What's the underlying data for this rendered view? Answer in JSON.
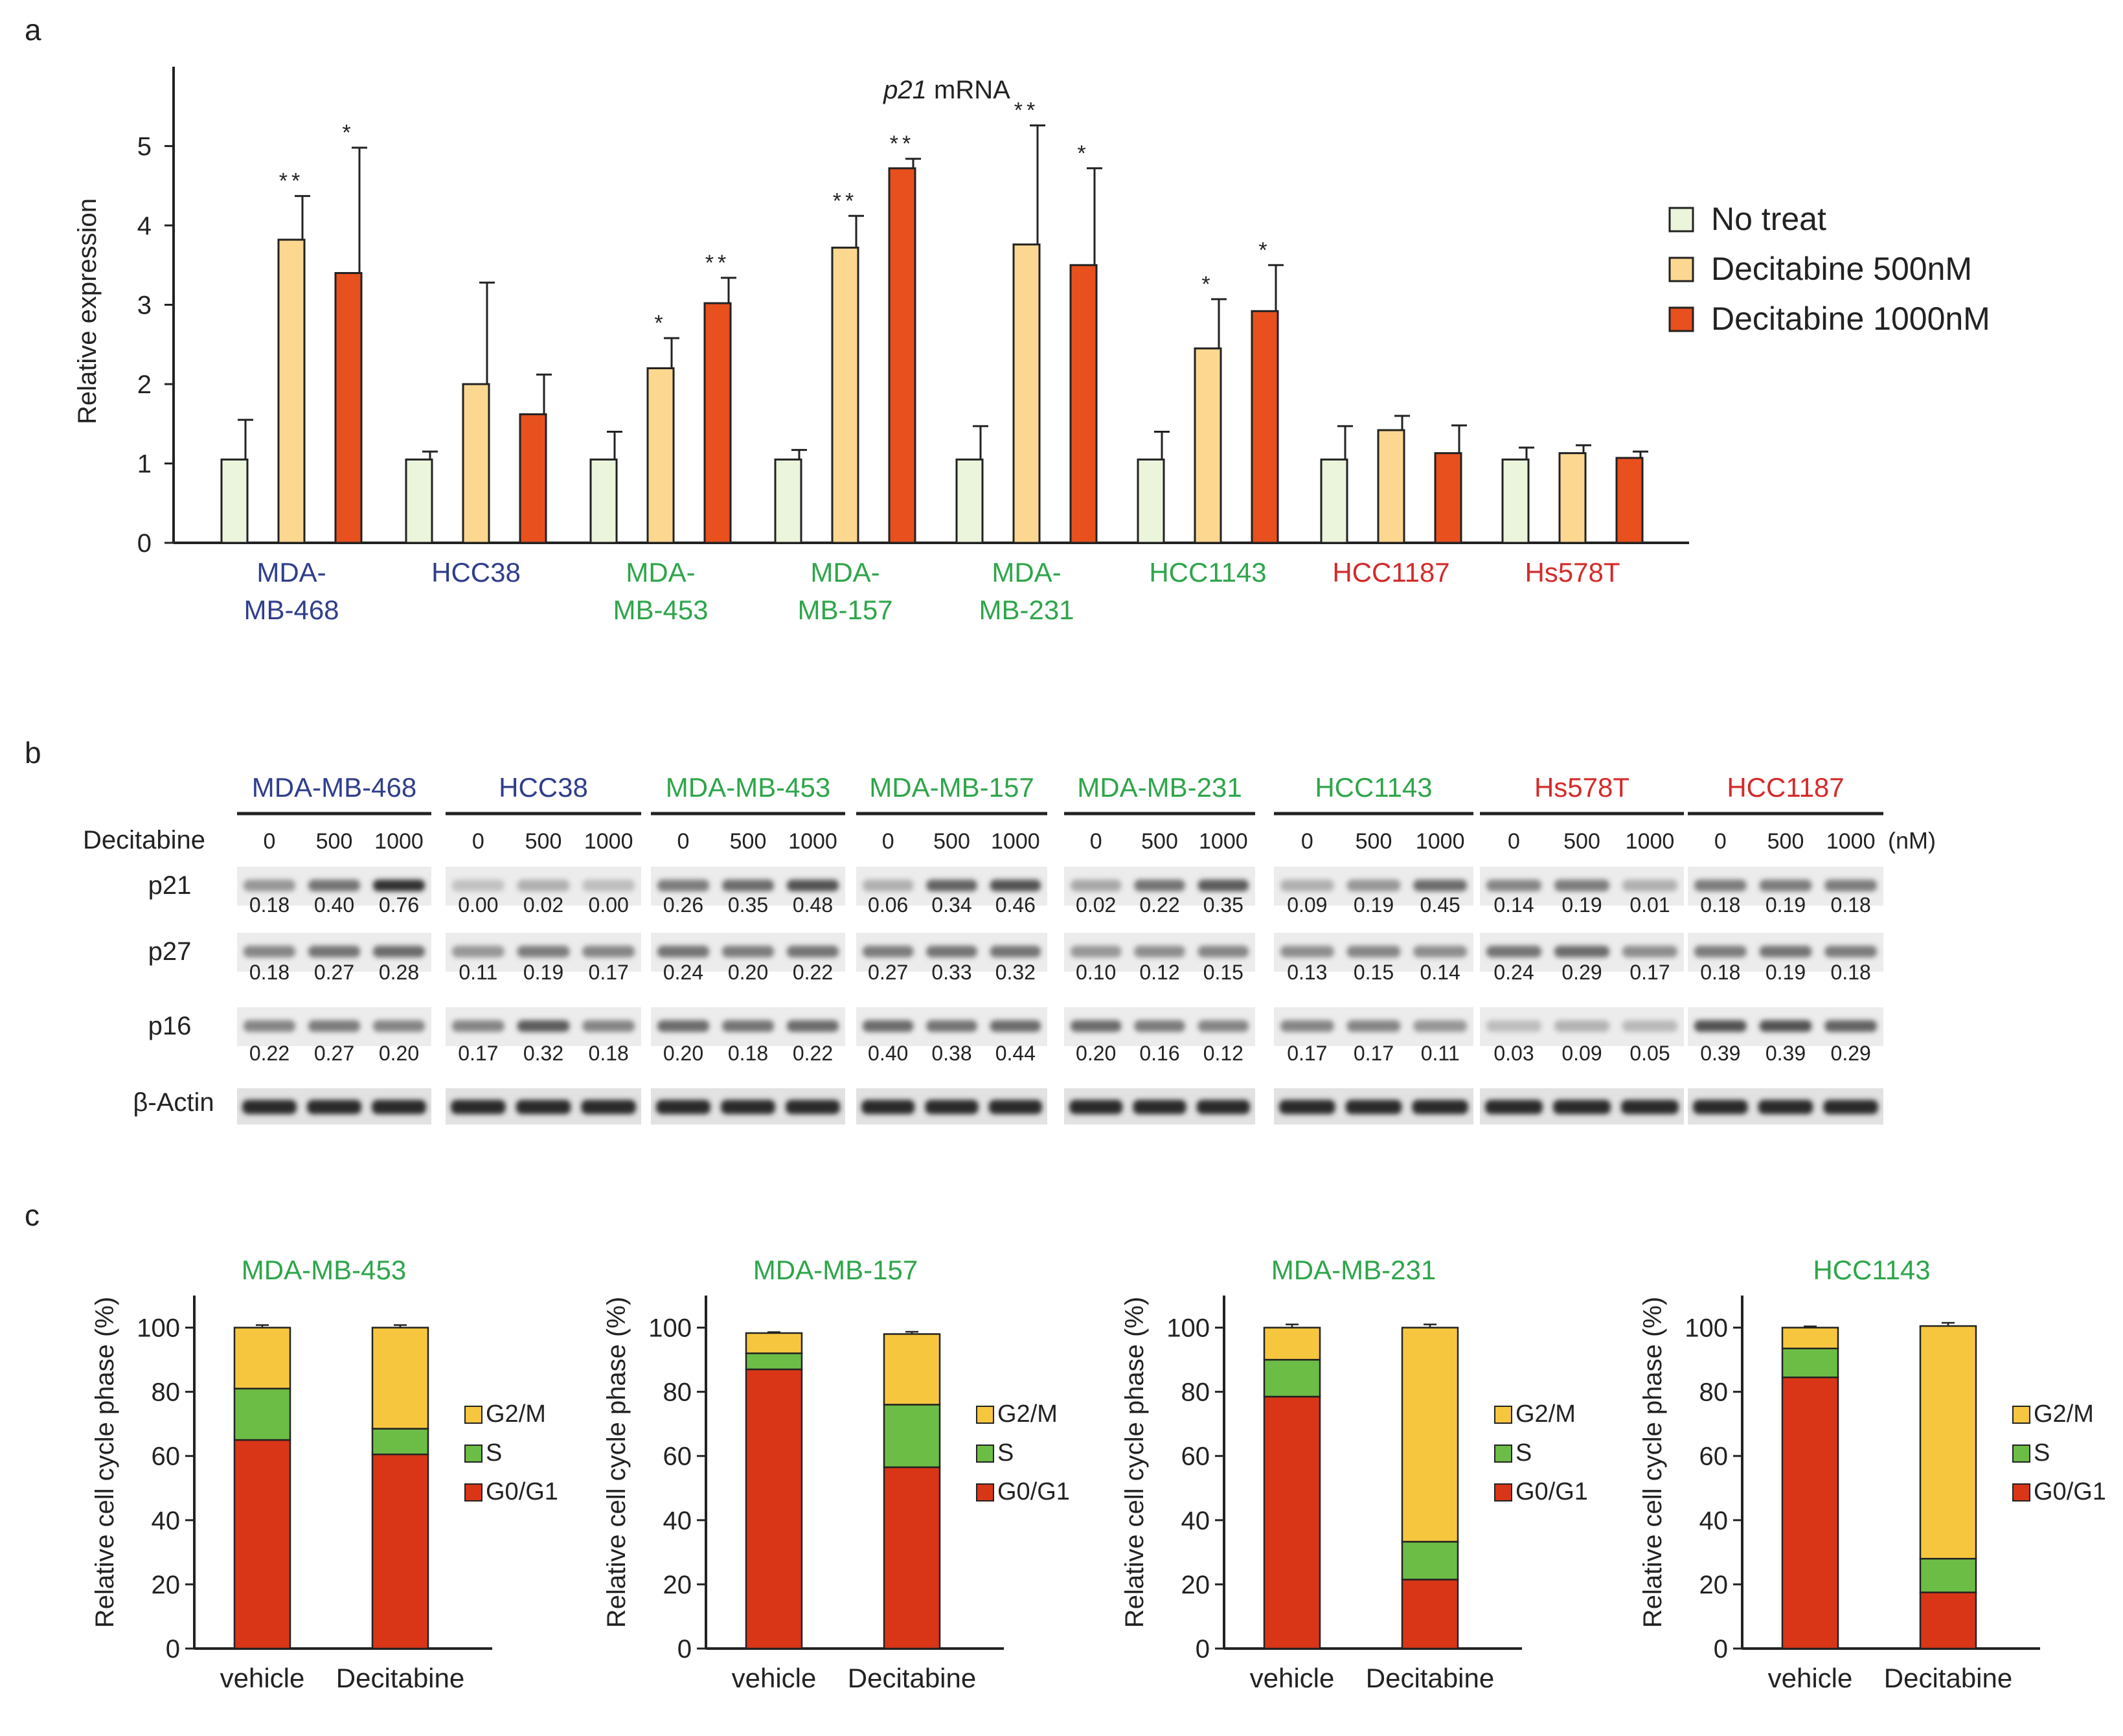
{
  "panel_labels": {
    "a": "a",
    "b": "b",
    "c": "c"
  },
  "colors": {
    "no_treat": "#eaf5dc",
    "dec500": "#fcd790",
    "dec1000": "#e8501e",
    "blue": "#2f3e8c",
    "green": "#2ea54a",
    "red": "#d42a2a",
    "G0G1": "#d93618",
    "S": "#6cbd45",
    "G2M": "#f6c73e"
  },
  "panel_b": {
    "cell_lines": [
      {
        "name": "MDA-MB-468",
        "color": "blue"
      },
      {
        "name": "HCC38",
        "color": "blue"
      },
      {
        "name": "MDA-MB-453",
        "color": "green"
      },
      {
        "name": "MDA-MB-157",
        "color": "green"
      },
      {
        "name": "MDA-MB-231",
        "color": "green"
      },
      {
        "name": "HCC1143",
        "color": "green"
      },
      {
        "name": "Hs578T",
        "color": "red"
      },
      {
        "name": "HCC1187",
        "color": "red"
      }
    ],
    "treatment_label": "Decitabine",
    "doses": [
      "0",
      "500",
      "1000"
    ],
    "unit": "(nM)",
    "rows": [
      {
        "label": "p21",
        "values": [
          [
            "0.18",
            "0.40",
            "0.76"
          ],
          [
            "0.00",
            "0.02",
            "0.00"
          ],
          [
            "0.26",
            "0.35",
            "0.48"
          ],
          [
            "0.06",
            "0.34",
            "0.46"
          ],
          [
            "0.02",
            "0.22",
            "0.35"
          ],
          [
            "0.09",
            "0.19",
            "0.45"
          ],
          [
            "0.14",
            "0.19",
            "0.01"
          ],
          [
            "0.18",
            "0.19",
            "0.18"
          ]
        ]
      },
      {
        "label": "p27",
        "values": [
          [
            "0.18",
            "0.27",
            "0.28"
          ],
          [
            "0.11",
            "0.19",
            "0.17"
          ],
          [
            "0.24",
            "0.20",
            "0.22"
          ],
          [
            "0.27",
            "0.33",
            "0.32"
          ],
          [
            "0.10",
            "0.12",
            "0.15"
          ],
          [
            "0.13",
            "0.15",
            "0.14"
          ],
          [
            "0.24",
            "0.29",
            "0.17"
          ],
          [
            "0.18",
            "0.19",
            "0.18"
          ]
        ]
      },
      {
        "label": "p16",
        "values": [
          [
            "0.22",
            "0.27",
            "0.20"
          ],
          [
            "0.17",
            "0.32",
            "0.18"
          ],
          [
            "0.20",
            "0.18",
            "0.22"
          ],
          [
            "0.40",
            "0.38",
            "0.44"
          ],
          [
            "0.20",
            "0.16",
            "0.12"
          ],
          [
            "0.17",
            "0.17",
            "0.11"
          ],
          [
            "0.03",
            "0.09",
            "0.05"
          ],
          [
            "0.39",
            "0.39",
            "0.29"
          ]
        ]
      }
    ],
    "actin_label": "β-Actin"
  },
  "chart_data": [
    {
      "type": "bar",
      "title_italic": "p21",
      "title_rest": " mRNA",
      "ylabel": "Relative expression",
      "ylim": [
        0,
        6
      ],
      "yticks": [
        0,
        1,
        2,
        3,
        4,
        5
      ],
      "categories": [
        {
          "lines": [
            "MDA-",
            "MB-468"
          ],
          "color": "blue"
        },
        {
          "lines": [
            "HCC38"
          ],
          "color": "blue"
        },
        {
          "lines": [
            "MDA-",
            "MB-453"
          ],
          "color": "green"
        },
        {
          "lines": [
            "MDA-",
            "MB-157"
          ],
          "color": "green"
        },
        {
          "lines": [
            "MDA-",
            "MB-231"
          ],
          "color": "green"
        },
        {
          "lines": [
            "HCC1143"
          ],
          "color": "green"
        },
        {
          "lines": [
            "HCC1187"
          ],
          "color": "red"
        },
        {
          "lines": [
            "Hs578T"
          ],
          "color": "red"
        }
      ],
      "series": [
        {
          "name": "No treat",
          "color": "no_treat",
          "values": [
            1.05,
            1.05,
            1.05,
            1.05,
            1.05,
            1.05,
            1.05,
            1.05
          ],
          "errors": [
            0.5,
            0.1,
            0.35,
            0.12,
            0.42,
            0.35,
            0.42,
            0.15
          ],
          "sig": [
            "",
            "",
            "",
            "",
            "",
            "",
            "",
            ""
          ]
        },
        {
          "name": "Decitabine 500nM",
          "color": "dec500",
          "values": [
            3.82,
            2.0,
            2.2,
            3.72,
            3.76,
            2.45,
            1.42,
            1.13
          ],
          "errors": [
            0.55,
            1.28,
            0.38,
            0.4,
            1.5,
            0.62,
            0.18,
            0.1
          ],
          "sig": [
            "**",
            "",
            "*",
            "**",
            "**",
            "*",
            "",
            ""
          ]
        },
        {
          "name": "Decitabine 1000nM",
          "color": "dec1000",
          "values": [
            3.4,
            1.62,
            3.02,
            4.72,
            3.5,
            2.92,
            1.13,
            1.07
          ],
          "errors": [
            1.58,
            0.5,
            0.32,
            0.12,
            1.22,
            0.58,
            0.35,
            0.08
          ],
          "sig": [
            "*",
            "",
            "**",
            "**",
            "*",
            "*",
            "",
            ""
          ]
        }
      ]
    },
    {
      "type": "bar",
      "stacked": true,
      "title": "MDA-MB-453",
      "title_color": "green",
      "ylabel": "Relative cell cycle phase (%)",
      "ylim": [
        0,
        110
      ],
      "yticks": [
        0,
        20,
        40,
        60,
        80,
        100
      ],
      "categories": [
        "vehicle",
        "Decitabine"
      ],
      "series": [
        {
          "name": "G0/G1",
          "color": "G0G1",
          "values": [
            65,
            60.5
          ],
          "errors": [
            1,
            1
          ]
        },
        {
          "name": "S",
          "color": "S",
          "values": [
            16,
            8
          ],
          "errors": [
            0.6,
            0.7
          ]
        },
        {
          "name": "G2/M",
          "color": "G2M",
          "values": [
            19,
            31.5
          ],
          "errors": [
            0.8,
            0.8
          ]
        }
      ]
    },
    {
      "type": "bar",
      "stacked": true,
      "title": "MDA-MB-157",
      "title_color": "green",
      "ylabel": "Relative cell cycle phase (%)",
      "ylim": [
        0,
        110
      ],
      "yticks": [
        0,
        20,
        40,
        60,
        80,
        100
      ],
      "categories": [
        "vehicle",
        "Decitabine"
      ],
      "series": [
        {
          "name": "G0/G1",
          "color": "G0G1",
          "values": [
            87,
            56.5
          ],
          "errors": [
            0.5,
            1
          ]
        },
        {
          "name": "S",
          "color": "S",
          "values": [
            5,
            19.5
          ],
          "errors": [
            0.5,
            0.6
          ]
        },
        {
          "name": "G2/M",
          "color": "G2M",
          "values": [
            6.3,
            22
          ],
          "errors": [
            0.3,
            0.7
          ]
        }
      ]
    },
    {
      "type": "bar",
      "stacked": true,
      "title": "MDA-MB-231",
      "title_color": "green",
      "ylabel": "Relative cell cycle phase (%)",
      "ylim": [
        0,
        110
      ],
      "yticks": [
        0,
        20,
        40,
        60,
        80,
        100
      ],
      "categories": [
        "vehicle",
        "Decitabine"
      ],
      "series": [
        {
          "name": "G0/G1",
          "color": "G0G1",
          "values": [
            78.5,
            21.5
          ],
          "errors": [
            1.5,
            1.2
          ]
        },
        {
          "name": "S",
          "color": "S",
          "values": [
            11.5,
            11.8
          ],
          "errors": [
            0.8,
            1.5
          ]
        },
        {
          "name": "G2/M",
          "color": "G2M",
          "values": [
            10,
            66.7
          ],
          "errors": [
            1,
            1
          ]
        }
      ]
    },
    {
      "type": "bar",
      "stacked": true,
      "title": "HCC1143",
      "title_color": "green",
      "ylabel": "Relative cell cycle phase (%)",
      "ylim": [
        0,
        110
      ],
      "yticks": [
        0,
        20,
        40,
        60,
        80,
        100
      ],
      "categories": [
        "vehicle",
        "Decitabine"
      ],
      "series": [
        {
          "name": "G0/G1",
          "color": "G0G1",
          "values": [
            84.5,
            17.5
          ],
          "errors": [
            0.8,
            1.2
          ]
        },
        {
          "name": "S",
          "color": "S",
          "values": [
            9,
            10.5
          ],
          "errors": [
            0.5,
            0.8
          ]
        },
        {
          "name": "G2/M",
          "color": "G2M",
          "values": [
            6.5,
            72.5
          ],
          "errors": [
            0.4,
            1
          ]
        }
      ]
    }
  ]
}
